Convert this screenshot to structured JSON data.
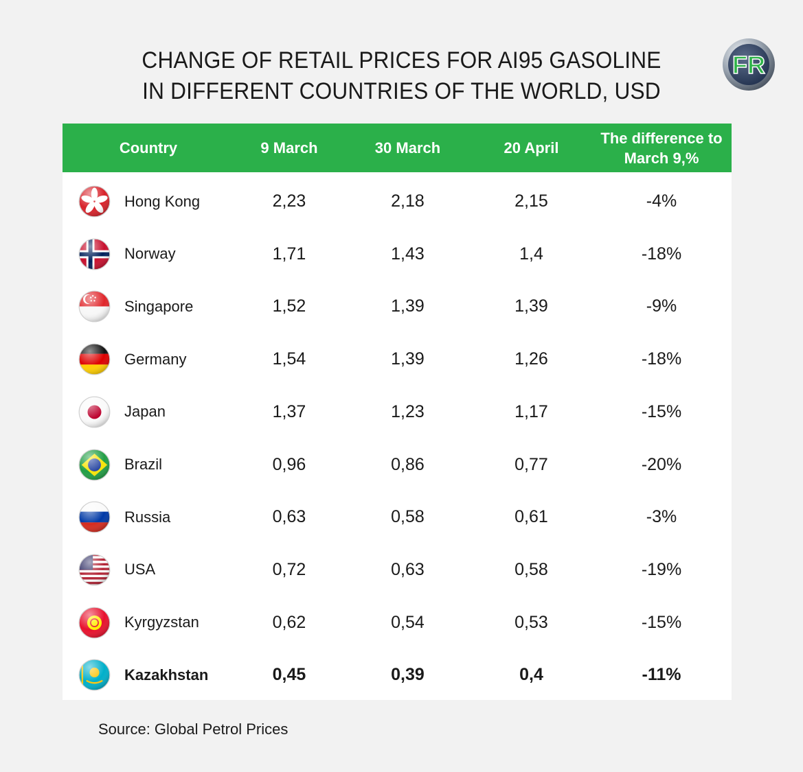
{
  "title": {
    "line1": "CHANGE OF RETAIL PRICES FOR AI95 GASOLINE",
    "line2": "IN DIFFERENT COUNTRIES OF THE WORLD, USD"
  },
  "logo": {
    "text": "FR"
  },
  "chart_data": {
    "type": "table",
    "columns": [
      "Country",
      "9 March",
      "30 March",
      "20 April",
      "The difference to March 9,%"
    ],
    "rows": [
      {
        "country": "Hong Kong",
        "flag": "hong-kong-flag-icon",
        "values": [
          "2,23",
          "2,18",
          "2,15",
          "-4%"
        ]
      },
      {
        "country": "Norway",
        "flag": "norway-flag-icon",
        "values": [
          "1,71",
          "1,43",
          "1,4",
          "-18%"
        ]
      },
      {
        "country": "Singapore",
        "flag": "singapore-flag-icon",
        "values": [
          "1,52",
          "1,39",
          "1,39",
          "-9%"
        ]
      },
      {
        "country": "Germany",
        "flag": "germany-flag-icon",
        "values": [
          "1,54",
          "1,39",
          "1,26",
          "-18%"
        ]
      },
      {
        "country": "Japan",
        "flag": "japan-flag-icon",
        "values": [
          "1,37",
          "1,23",
          "1,17",
          "-15%"
        ]
      },
      {
        "country": "Brazil",
        "flag": "brazil-flag-icon",
        "values": [
          "0,96",
          "0,86",
          "0,77",
          "-20%"
        ]
      },
      {
        "country": "Russia",
        "flag": "russia-flag-icon",
        "values": [
          "0,63",
          "0,58",
          "0,61",
          "-3%"
        ]
      },
      {
        "country": "USA",
        "flag": "usa-flag-icon",
        "values": [
          "0,72",
          "0,63",
          "0,58",
          "-19%"
        ]
      },
      {
        "country": "Kyrgyzstan",
        "flag": "kyrgyzstan-flag-icon",
        "values": [
          "0,62",
          "0,54",
          "0,53",
          "-15%"
        ]
      },
      {
        "country": "Kazakhstan",
        "flag": "kazakhstan-flag-icon",
        "values": [
          "0,45",
          "0,39",
          "0,4",
          "-11%"
        ],
        "highlight": true
      }
    ]
  },
  "source": "Source: Global Petrol Prices",
  "colors": {
    "header": "#2bb04a",
    "background": "#f2f2f2",
    "table": "#ffffff"
  }
}
